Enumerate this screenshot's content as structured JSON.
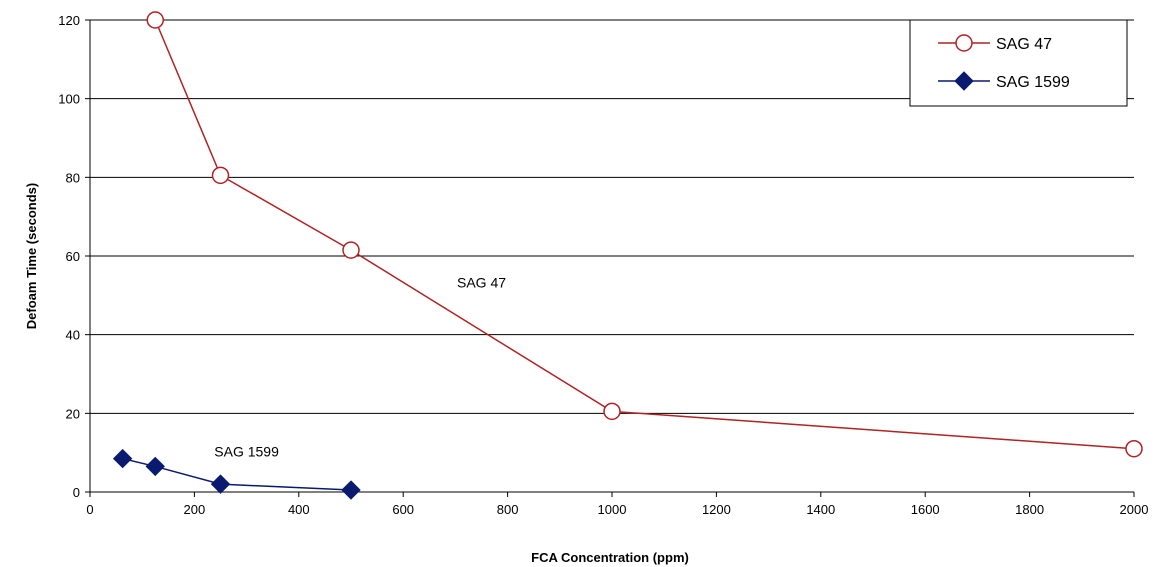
{
  "chart_data": {
    "type": "line",
    "title": "",
    "xlabel": "FCA Concentration (ppm)",
    "ylabel": "Defoam Time (seconds)",
    "xlim": [
      0,
      2000
    ],
    "ylim": [
      0,
      120
    ],
    "xticks": [
      0,
      200,
      400,
      600,
      800,
      1000,
      1200,
      1400,
      1600,
      1800,
      2000
    ],
    "yticks": [
      0,
      20,
      40,
      60,
      80,
      100,
      120
    ],
    "grid": "horizontal",
    "legend_position": "top-right",
    "series": [
      {
        "name": "SAG 47",
        "color": "#b22222",
        "marker": "open-circle",
        "x": [
          125,
          250,
          500,
          1000,
          2000
        ],
        "y": [
          120,
          80.5,
          61.5,
          20.5,
          11
        ]
      },
      {
        "name": "SAG 1599",
        "color": "#0a1a6e",
        "marker": "filled-diamond",
        "x": [
          62.5,
          125,
          250,
          500
        ],
        "y": [
          8.5,
          6.5,
          2,
          0.5
        ]
      }
    ],
    "annotations": [
      {
        "text": "SAG 47",
        "x": 750,
        "y": 52
      },
      {
        "text": "SAG 1599",
        "x": 300,
        "y": 9
      }
    ]
  }
}
